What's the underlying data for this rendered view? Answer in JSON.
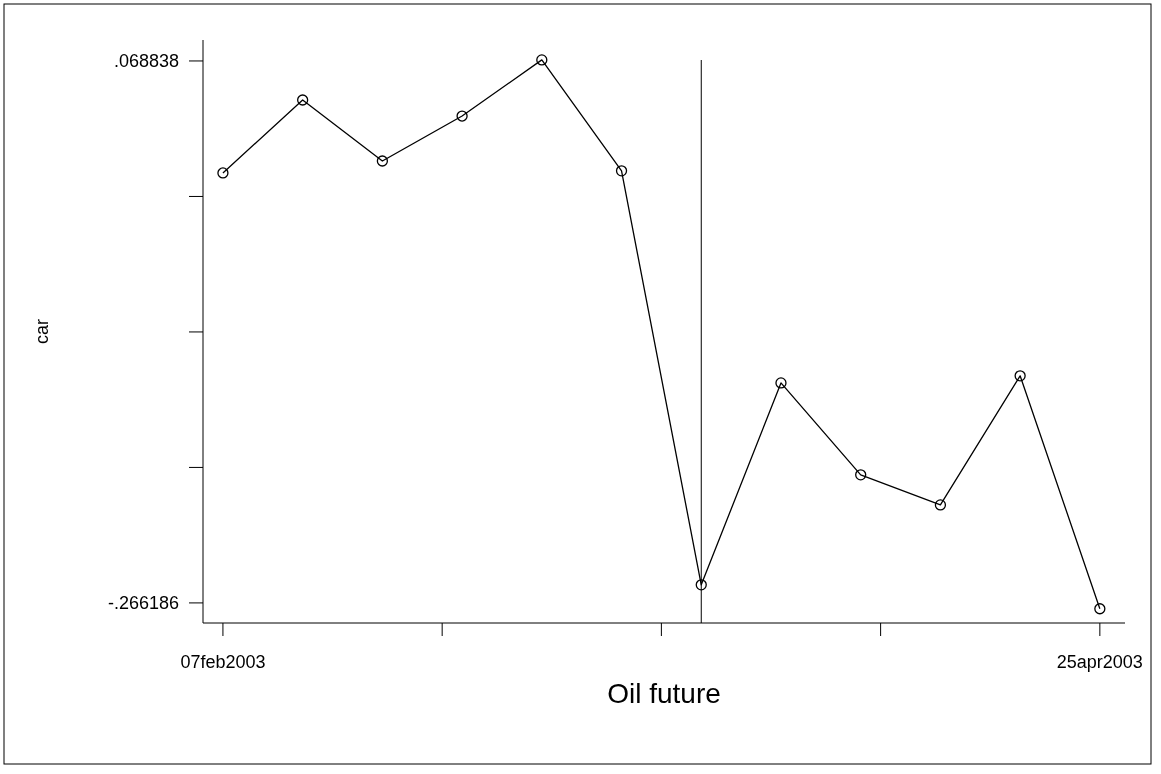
{
  "chart_data": {
    "type": "line",
    "xlabel": "Oil future",
    "ylabel": "car",
    "x": [
      "2003-02-07",
      "2003-02-14",
      "2003-02-21",
      "2003-02-28",
      "2003-03-07",
      "2003-03-14",
      "2003-03-21",
      "2003-03-28",
      "2003-04-04",
      "2003-04-11",
      "2003-04-18",
      "2003-04-25"
    ],
    "values": [
      -0.0004,
      0.0447,
      0.007,
      0.0348,
      0.0695,
      0.0009,
      -0.255,
      -0.1302,
      -0.187,
      -0.2056,
      -0.1258,
      -0.2698
    ],
    "color": "#000000",
    "marker": "circle",
    "line_style": "solid",
    "xlim": [
      "2003-02-05T06:00",
      "2003-04-27T05:00"
    ],
    "xticks": [
      {
        "value": "2003-02-07",
        "label": "07feb2003"
      },
      {
        "value": "2003-02-26T06:00",
        "label": null
      },
      {
        "value": "2003-03-17T12:00",
        "label": null
      },
      {
        "value": "2003-04-05T18:00",
        "label": null
      },
      {
        "value": "2003-04-25",
        "label": "25apr2003"
      }
    ],
    "ylim": [
      -0.2786,
      0.0818
    ],
    "yticks": [
      {
        "value": 0.068838,
        "label": ".068838"
      },
      {
        "value": -0.014918,
        "label": null
      },
      {
        "value": -0.098674,
        "label": null
      },
      {
        "value": -0.18243,
        "label": null
      },
      {
        "value": -0.266186,
        "label": "-.266186"
      }
    ],
    "ref_lines": [
      {
        "axis": "x",
        "value": "2003-03-21",
        "color": "#000000"
      }
    ],
    "grid": false
  }
}
